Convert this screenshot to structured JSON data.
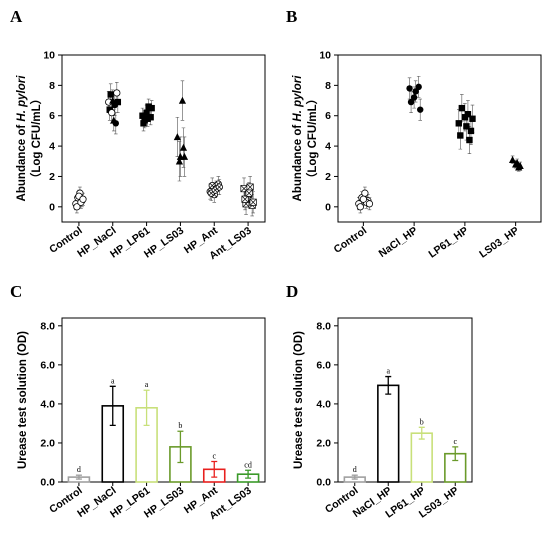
{
  "chart_data": [
    {
      "panel": "A",
      "type": "scatter",
      "ylabel_line1": "Abundance of ",
      "ylabel_italic": "H. pylori",
      "ylabel_line2": "（Log CFU/mL）",
      "ylim": [
        -1,
        10
      ],
      "yticks": [
        0,
        2,
        4,
        6,
        8,
        10
      ],
      "categories": [
        "Control",
        "HP_NaCl",
        "HP_LP61",
        "HP_LS03",
        "HP_Ant",
        "Ant_LS03"
      ],
      "markers": [
        "circle-open",
        "mixed",
        "square",
        "triangle",
        "circle-cross",
        "x-open"
      ],
      "groups": [
        {
          "name": "Control",
          "points": [
            [
              -0.15,
              0.2
            ],
            [
              -0.05,
              0.6
            ],
            [
              0.05,
              0.9
            ],
            [
              0.15,
              0.4
            ],
            [
              -0.1,
              0.0
            ],
            [
              0.1,
              0.3
            ],
            [
              0,
              0.7
            ],
            [
              0.2,
              0.5
            ]
          ],
          "err": 0.4
        },
        {
          "name": "HP_NaCl",
          "points": [
            [
              -0.2,
              6.9
            ],
            [
              -0.1,
              7.4
            ],
            [
              0,
              7.0
            ],
            [
              0.1,
              6.7
            ],
            [
              0.2,
              7.5
            ],
            [
              -0.15,
              6.4
            ],
            [
              0.05,
              5.7
            ],
            [
              0.15,
              5.5
            ],
            [
              -0.05,
              6.2
            ],
            [
              0.25,
              6.9
            ]
          ],
          "err": 0.7
        },
        {
          "name": "HP_LP61",
          "points": [
            [
              -0.2,
              6.0
            ],
            [
              -0.1,
              5.7
            ],
            [
              0,
              6.2
            ],
            [
              0.1,
              6.6
            ],
            [
              0.2,
              5.9
            ],
            [
              -0.15,
              5.5
            ],
            [
              0.05,
              5.8
            ],
            [
              0.25,
              6.5
            ]
          ],
          "err": 0.5
        },
        {
          "name": "HP_LS03",
          "points": [
            [
              -0.15,
              4.6
            ],
            [
              0,
              3.3
            ],
            [
              0.1,
              7.0
            ],
            [
              0.2,
              3.3
            ],
            [
              -0.05,
              3.0
            ],
            [
              0.15,
              3.9
            ]
          ],
          "err": 1.3
        },
        {
          "name": "HP_Ant",
          "points": [
            [
              -0.2,
              1.0
            ],
            [
              -0.1,
              1.4
            ],
            [
              0,
              0.8
            ],
            [
              0.1,
              1.2
            ],
            [
              0.2,
              1.5
            ],
            [
              -0.15,
              0.9
            ],
            [
              0.05,
              1.1
            ],
            [
              0.25,
              1.3
            ]
          ],
          "err": 0.5
        },
        {
          "name": "Ant_LS03",
          "points": [
            [
              -0.2,
              1.2
            ],
            [
              -0.1,
              0.2
            ],
            [
              0,
              0.8
            ],
            [
              0.1,
              1.3
            ],
            [
              0.2,
              0.1
            ],
            [
              -0.15,
              0.5
            ],
            [
              0.05,
              0.9
            ],
            [
              0.25,
              0.3
            ]
          ],
          "err": 0.7
        }
      ]
    },
    {
      "panel": "B",
      "type": "scatter",
      "ylabel_line1": "Abundance of ",
      "ylabel_italic": "H. pylori",
      "ylabel_line2": "（Log CFU/mL）",
      "ylim": [
        -1,
        10
      ],
      "yticks": [
        0,
        2,
        4,
        6,
        8,
        10
      ],
      "categories": [
        "Control",
        "NaCl_HP",
        "LP61_HP",
        "LS03_HP"
      ],
      "markers": [
        "circle-open",
        "circle",
        "square",
        "triangle"
      ],
      "groups": [
        {
          "name": "Control",
          "points": [
            [
              -0.15,
              0.2
            ],
            [
              -0.05,
              0.6
            ],
            [
              0.05,
              0.9
            ],
            [
              0.15,
              0.4
            ],
            [
              -0.1,
              0.0
            ],
            [
              0.1,
              0.3
            ],
            [
              0,
              0.5
            ],
            [
              0.2,
              0.2
            ]
          ],
          "err": 0.4
        },
        {
          "name": "NaCl_HP",
          "points": [
            [
              -0.15,
              7.8
            ],
            [
              0,
              7.2
            ],
            [
              0.15,
              7.9
            ],
            [
              -0.1,
              6.9
            ],
            [
              0.05,
              7.6
            ],
            [
              0.2,
              6.4
            ]
          ],
          "err": 0.7
        },
        {
          "name": "LP61_HP",
          "points": [
            [
              -0.2,
              5.5
            ],
            [
              -0.1,
              6.5
            ],
            [
              0,
              5.9
            ],
            [
              0.1,
              6.1
            ],
            [
              0.2,
              5.0
            ],
            [
              -0.15,
              4.7
            ],
            [
              0.05,
              5.3
            ],
            [
              0.15,
              4.4
            ],
            [
              0.25,
              5.8
            ]
          ],
          "err": 0.9
        },
        {
          "name": "LS03_HP",
          "points": [
            [
              -0.1,
              3.1
            ],
            [
              0,
              2.8
            ],
            [
              0.1,
              2.6
            ],
            [
              0.05,
              2.9
            ],
            [
              0.15,
              2.7
            ]
          ],
          "err": 0.25
        }
      ]
    },
    {
      "panel": "C",
      "type": "bar",
      "ylabel": "Urease test solution (OD)",
      "ylim": [
        0,
        8.4
      ],
      "yticks": [
        "0.0",
        "2.0",
        "4.0",
        "6.0",
        "8.0"
      ],
      "categories": [
        "Control",
        "HP_NaCl",
        "HP_LP61",
        "HP_LS03",
        "HP_Ant",
        "Ant_LS03"
      ],
      "values": [
        0.25,
        3.9,
        3.8,
        1.8,
        0.65,
        0.4
      ],
      "errors": [
        0.1,
        1.0,
        0.9,
        0.8,
        0.4,
        0.2
      ],
      "colors": [
        "#a0a0a0",
        "#000000",
        "#c8e07a",
        "#6a9a2a",
        "#e8201e",
        "#3a9a28"
      ],
      "sig": [
        "d",
        "a",
        "a",
        "b",
        "c",
        "cd"
      ]
    },
    {
      "panel": "D",
      "type": "bar",
      "ylabel": "Urease test solution (OD)",
      "ylim": [
        0,
        8.4
      ],
      "yticks": [
        "0.0",
        "2.0",
        "4.0",
        "6.0",
        "8.0"
      ],
      "categories": [
        "Control",
        "NaCl_HP",
        "LP61_HP",
        "LS03_HP"
      ],
      "values": [
        0.25,
        4.95,
        2.5,
        1.45
      ],
      "errors": [
        0.1,
        0.45,
        0.3,
        0.35
      ],
      "colors": [
        "#a0a0a0",
        "#000000",
        "#c8e07a",
        "#6a9a2a"
      ],
      "sig": [
        "d",
        "a",
        "b",
        "c"
      ]
    }
  ]
}
